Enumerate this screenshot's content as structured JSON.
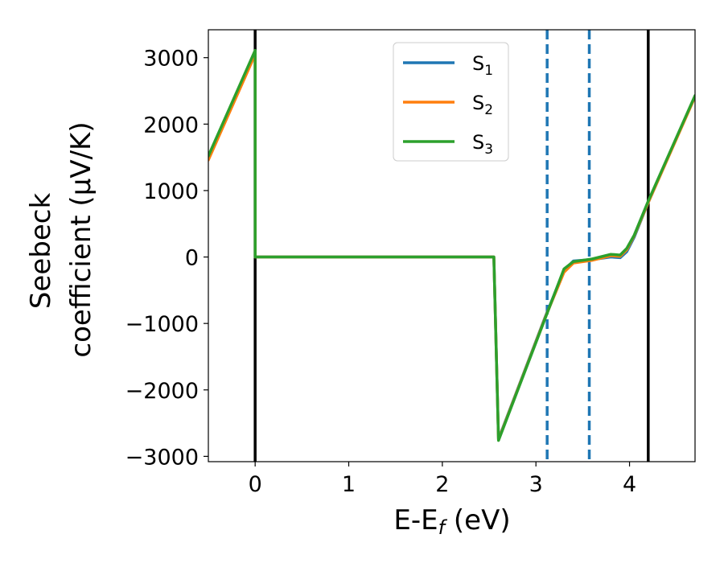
{
  "chart_data": {
    "type": "line",
    "ylabel_line1": "Seebeck",
    "ylabel_line2": "coefficient  (μV/K)",
    "xlabel_base": "E-E",
    "xlabel_sub": "f",
    "xlabel_tail": " (eV)",
    "xlim": [
      -0.5,
      4.7
    ],
    "ylim": [
      -3080,
      3420
    ],
    "xticks": [
      0,
      1,
      2,
      3,
      4
    ],
    "xtick_labels": [
      "0",
      "1",
      "2",
      "3",
      "4"
    ],
    "yticks": [
      -3000,
      -2000,
      -1000,
      0,
      1000,
      2000,
      3000
    ],
    "ytick_labels": [
      "−3000",
      "−2000",
      "−1000",
      "0",
      "1000",
      "2000",
      "3000"
    ],
    "grid": false,
    "legend_position": "top-center",
    "series": [
      {
        "name": "S",
        "sub": "1",
        "color": "#1f77b4",
        "x": [
          -0.5,
          0.0,
          0.0,
          2.55,
          2.55,
          2.6,
          3.1,
          3.3,
          3.4,
          3.6,
          3.8,
          3.9,
          3.97,
          4.05,
          4.2,
          4.7
        ],
        "y": [
          1500,
          3090,
          0,
          0,
          0,
          -2740,
          -900,
          -200,
          -60,
          -40,
          0,
          -10,
          80,
          300,
          820,
          2420
        ]
      },
      {
        "name": "S",
        "sub": "2",
        "color": "#ff7f0e",
        "x": [
          -0.5,
          0.0,
          0.0,
          2.55,
          2.55,
          2.6,
          3.1,
          3.3,
          3.4,
          3.6,
          3.8,
          3.9,
          3.97,
          4.05,
          4.2,
          4.7
        ],
        "y": [
          1460,
          3050,
          0,
          0,
          0,
          -2750,
          -910,
          -230,
          -90,
          -50,
          20,
          10,
          110,
          320,
          820,
          2410
        ]
      },
      {
        "name": "S",
        "sub": "3",
        "color": "#2ca02c",
        "x": [
          -0.5,
          0.0,
          0.0,
          2.55,
          2.55,
          2.6,
          3.1,
          3.3,
          3.4,
          3.6,
          3.8,
          3.9,
          3.97,
          4.05,
          4.2,
          4.7
        ],
        "y": [
          1520,
          3110,
          0,
          0,
          0,
          -2760,
          -920,
          -180,
          -70,
          -30,
          40,
          30,
          130,
          330,
          840,
          2430
        ]
      }
    ],
    "vlines": [
      {
        "x": 0.0,
        "color": "#000000",
        "style": "solid"
      },
      {
        "x": 4.2,
        "color": "#000000",
        "style": "solid"
      },
      {
        "x": 3.12,
        "color": "#1f77b4",
        "style": "dashed"
      },
      {
        "x": 3.57,
        "color": "#1f77b4",
        "style": "dashed"
      }
    ]
  }
}
